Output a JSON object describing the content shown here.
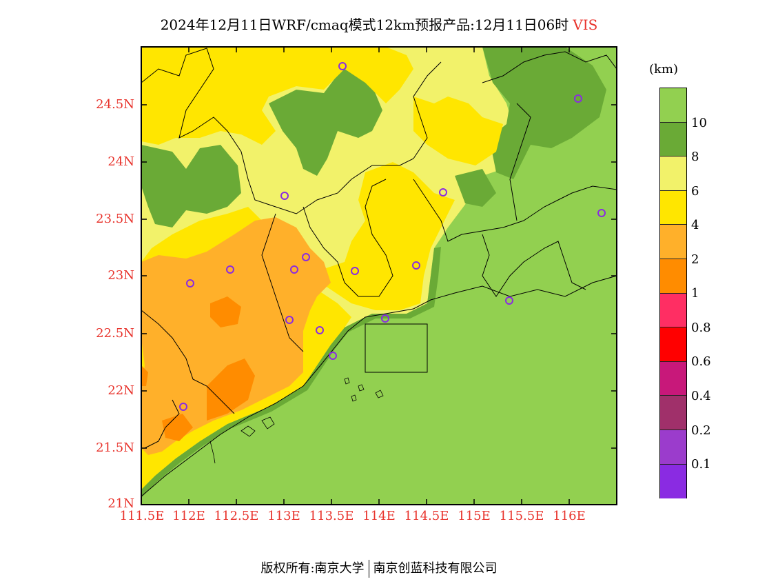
{
  "title": {
    "main": "2024年12月11日WRF/cmaq模式12km预报产品:12月11日06时",
    "variable": "VIS"
  },
  "axes": {
    "lat_ticks": [
      "24.5N",
      "24N",
      "23.5N",
      "23N",
      "22.5N",
      "22N",
      "21.5N",
      "21N"
    ],
    "lon_ticks": [
      "111.5E",
      "112E",
      "112.5E",
      "113E",
      "113.5E",
      "114E",
      "114.5E",
      "115E",
      "115.5E",
      "116E"
    ]
  },
  "colorbar": {
    "unit": "(km)",
    "labels": [
      "10",
      "8",
      "6",
      "4",
      "2",
      "1",
      "0.8",
      "0.6",
      "0.4",
      "0.2",
      "0.1"
    ],
    "colors": [
      "#92d050",
      "#6aaa36",
      "#f2f26a",
      "#ffe600",
      "#ffb02a",
      "#ff8c00",
      "#ff2e63",
      "#ff0000",
      "#c8187a",
      "#a0306a",
      "#9b3ccc",
      "#8a2be2"
    ]
  },
  "stations_label": "city-stations",
  "footer": {
    "left": "版权所有:南京大学",
    "right": "南京创蓝科技有限公司"
  }
}
